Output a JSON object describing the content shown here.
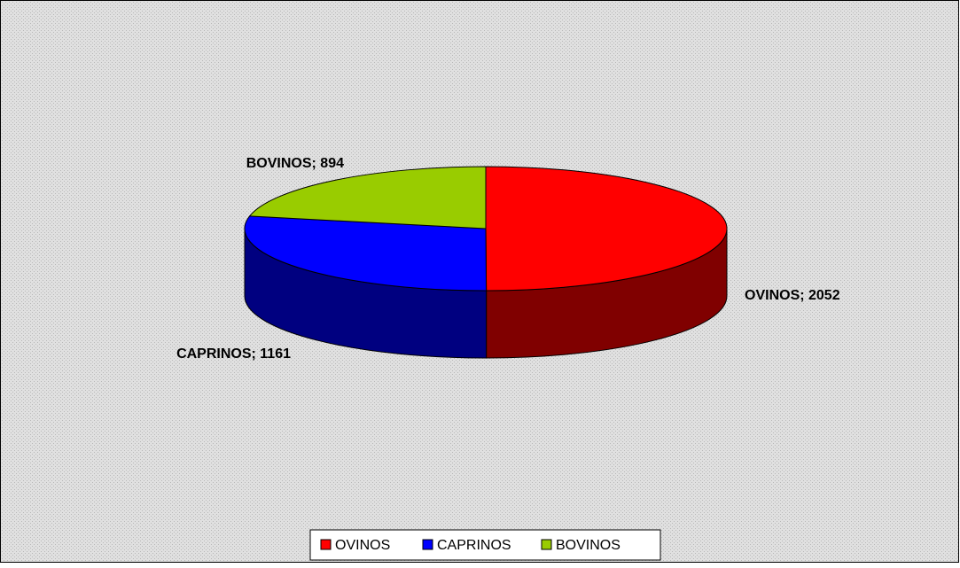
{
  "chart_data": {
    "type": "pie3d",
    "categories": [
      "OVINOS",
      "CAPRINOS",
      "BOVINOS"
    ],
    "values": [
      2052,
      1161,
      894
    ],
    "value_labels": [
      "OVINOS; 2052",
      "CAPRINOS; 1161",
      "BOVINOS; 894"
    ],
    "colors": [
      "#ff0000",
      "#0000ff",
      "#99cc00"
    ],
    "side_colors": [
      "#800000",
      "#000080",
      "#4d6600"
    ],
    "legend": "bottom"
  }
}
